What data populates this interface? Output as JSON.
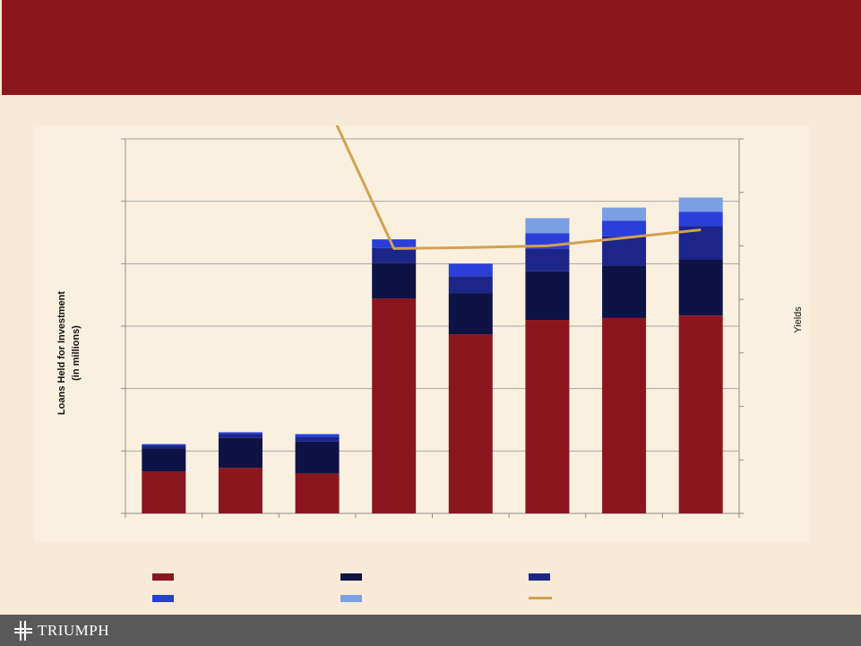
{
  "header": {
    "title": ""
  },
  "chart_data": {
    "type": "bar",
    "stacked": true,
    "categories": [
      "",
      "",
      "",
      "",
      "",
      "",
      "",
      ""
    ],
    "series": [
      {
        "values": [
          67,
          73,
          64,
          344,
          287,
          310,
          313,
          317
        ],
        "color": "#8b161d"
      },
      {
        "values": [
          37,
          48,
          51,
          57,
          66,
          78,
          84,
          90
        ],
        "color": "#0f1245"
      },
      {
        "values": [
          5,
          6,
          7,
          24,
          27,
          36,
          47,
          53
        ],
        "color": "#1c2588"
      },
      {
        "values": [
          2,
          3,
          5,
          14,
          20,
          25,
          25,
          23
        ],
        "color": "#2a3ed9"
      },
      {
        "values": [
          0,
          0,
          0,
          0,
          0,
          24,
          21,
          23
        ],
        "color": "#7a9fe3"
      }
    ],
    "line_series": {
      "axis": "right",
      "values": [
        0.735,
        0.755,
        0.805,
        0.495,
        0.497,
        0.5,
        0.515,
        0.53
      ],
      "color": "#d4a050"
    },
    "ylim": [
      0,
      600
    ],
    "y2lim": [
      0,
      0.7
    ],
    "y_ticks": [
      0,
      100,
      200,
      300,
      400,
      500,
      600
    ],
    "ylabel": "Loans Held for Investment",
    "ylabel_sub": "(in millions)",
    "y2label": "Yields",
    "grid": true,
    "legend": {
      "placement": "bottom"
    }
  },
  "footer": {
    "logo_text": "TRIUMPH",
    "logo_icon": "triumph-cross-icon"
  }
}
